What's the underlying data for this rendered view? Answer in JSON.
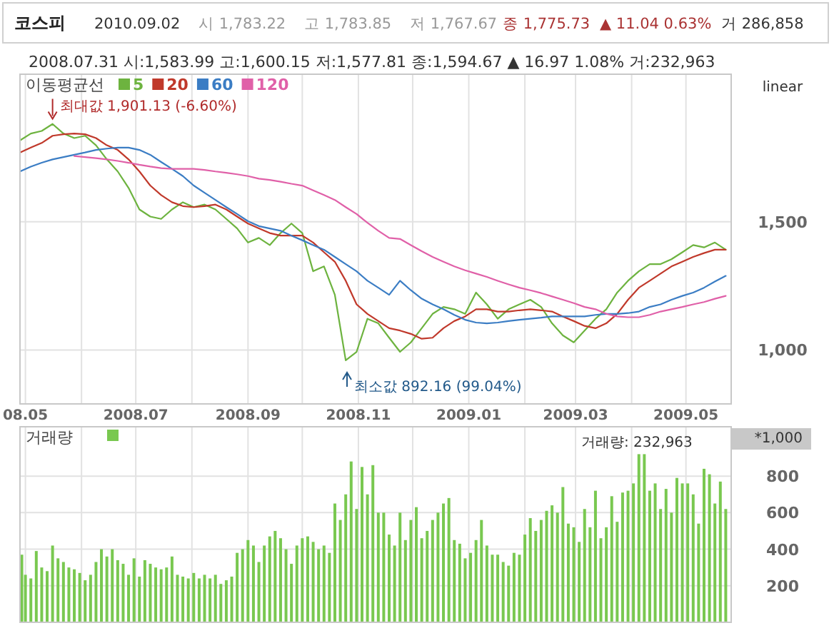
{
  "chart_data": [
    {
      "type": "line",
      "title": "코스피",
      "subtitle": "2008.07.31 시:1,583.99 고:1,600.15 저:1,577.81 종:1,594.67 ▲ 16.97 1.08% 거:232,963",
      "legend_title": "이동평균선",
      "legend": "top left",
      "grid": true,
      "annotations": [
        "2010.09.02",
        "시 1,783.22",
        "고 1,783.85",
        "저 1,767.67",
        "종 1,775.73",
        "▲ 11.04 0.63%",
        "거 286,858",
        "linear",
        {
          "text": "최대값 1,901.13 (-6.60%)",
          "x": "2008-05-16",
          "y": 1901.13
        },
        "최소값 892.16 (99.04%)"
      ],
      "x": [
        "2008-04-28",
        "2008-05-04",
        "2008-05-10",
        "2008-05-16",
        "2008-05-22",
        "2008-05-28",
        "2008-06-03",
        "2008-06-09",
        "2008-06-15",
        "2008-06-21",
        "2008-06-27",
        "2008-07-03",
        "2008-07-09",
        "2008-07-15",
        "2008-07-21",
        "2008-07-27",
        "2008-08-02",
        "2008-08-08",
        "2008-08-14",
        "2008-08-20",
        "2008-08-26",
        "2008-09-01",
        "2008-09-07",
        "2008-09-13",
        "2008-09-19",
        "2008-09-25",
        "2008-10-01",
        "2008-10-07",
        "2008-10-13",
        "2008-10-19",
        "2008-10-25",
        "2008-10-31",
        "2008-11-06",
        "2008-11-12",
        "2008-11-18",
        "2008-11-24",
        "2008-11-30",
        "2008-12-06",
        "2008-12-12",
        "2008-12-18",
        "2008-12-24",
        "2008-12-30",
        "2009-01-05",
        "2009-01-11",
        "2009-01-17",
        "2009-01-23",
        "2009-01-29",
        "2009-02-04",
        "2009-02-10",
        "2009-02-16",
        "2009-02-22",
        "2009-02-28",
        "2009-03-06",
        "2009-03-12",
        "2009-03-18",
        "2009-03-24",
        "2009-03-30",
        "2009-04-05",
        "2009-04-11",
        "2009-04-17",
        "2009-04-23",
        "2009-04-29",
        "2009-05-05",
        "2009-05-11",
        "2009-05-17",
        "2009-05-23"
      ],
      "xlim": [
        "2008-04-28",
        "2009-05-26"
      ],
      "xticks": [
        {
          "value": "2008-05-01",
          "label": "08.05"
        },
        {
          "value": "2008-06-01",
          "label": null
        },
        {
          "value": "2008-07-01",
          "label": "2008.07"
        },
        {
          "value": "2008-08-01",
          "label": null
        },
        {
          "value": "2008-09-01",
          "label": "2008.09"
        },
        {
          "value": "2008-10-01",
          "label": null
        },
        {
          "value": "2008-11-01",
          "label": "2008.11"
        },
        {
          "value": "2008-12-01",
          "label": null
        },
        {
          "value": "2009-01-01",
          "label": "2009.01"
        },
        {
          "value": "2009-02-01",
          "label": null
        },
        {
          "value": "2009-03-01",
          "label": "2009.03"
        },
        {
          "value": "2009-04-01",
          "label": null
        },
        {
          "value": "2009-05-01",
          "label": "2009.05"
        }
      ],
      "ylim": [
        790,
        2075
      ],
      "yticks": [
        {
          "value": 1000,
          "label": "1,000"
        },
        {
          "value": 1500,
          "label": "1,500"
        }
      ],
      "series": [
        {
          "name": "5",
          "color": "#6db33f",
          "values": [
            1817,
            1844,
            1854,
            1881,
            1844,
            1826,
            1835,
            1798,
            1743,
            1696,
            1632,
            1548,
            1520,
            1511,
            1548,
            1576,
            1557,
            1567,
            1548,
            1511,
            1474,
            1419,
            1437,
            1409,
            1456,
            1493,
            1456,
            1307,
            1326,
            1215,
            960,
            993,
            1122,
            1104,
            1048,
            993,
            1030,
            1085,
            1141,
            1168,
            1159,
            1141,
            1224,
            1178,
            1122,
            1159,
            1178,
            1196,
            1168,
            1104,
            1057,
            1030,
            1076,
            1122,
            1159,
            1224,
            1270,
            1307,
            1335,
            1335,
            1354,
            1381,
            1409,
            1400,
            1419,
            1391
          ]
        },
        {
          "name": "20",
          "color": "#c0392b",
          "values": [
            1770,
            1789,
            1807,
            1835,
            1841,
            1844,
            1841,
            1826,
            1798,
            1780,
            1743,
            1696,
            1641,
            1604,
            1576,
            1561,
            1557,
            1561,
            1567,
            1548,
            1520,
            1493,
            1474,
            1456,
            1446,
            1446,
            1446,
            1419,
            1381,
            1344,
            1270,
            1178,
            1141,
            1113,
            1085,
            1076,
            1063,
            1044,
            1048,
            1085,
            1113,
            1131,
            1159,
            1159,
            1150,
            1150,
            1155,
            1159,
            1155,
            1150,
            1131,
            1113,
            1094,
            1085,
            1104,
            1141,
            1196,
            1243,
            1270,
            1298,
            1326,
            1344,
            1363,
            1378,
            1391,
            1391
          ]
        },
        {
          "name": "60",
          "color": "#3b7dc4",
          "values": [
            1696,
            1715,
            1730,
            1743,
            1752,
            1761,
            1770,
            1780,
            1785,
            1789,
            1789,
            1780,
            1761,
            1733,
            1706,
            1678,
            1641,
            1613,
            1585,
            1557,
            1530,
            1502,
            1483,
            1474,
            1465,
            1446,
            1428,
            1409,
            1391,
            1363,
            1335,
            1307,
            1270,
            1243,
            1215,
            1270,
            1233,
            1200,
            1178,
            1159,
            1137,
            1118,
            1107,
            1104,
            1107,
            1113,
            1118,
            1122,
            1126,
            1131,
            1131,
            1131,
            1131,
            1137,
            1141,
            1141,
            1144,
            1150,
            1168,
            1178,
            1196,
            1211,
            1224,
            1243,
            1267,
            1289
          ]
        },
        {
          "name": "120",
          "color": "#e060a8",
          "values": [
            null,
            null,
            null,
            null,
            null,
            1756,
            1752,
            1748,
            1743,
            1737,
            1730,
            1722,
            1715,
            1709,
            1706,
            1706,
            1706,
            1702,
            1696,
            1691,
            1685,
            1678,
            1668,
            1663,
            1656,
            1648,
            1641,
            1622,
            1604,
            1585,
            1557,
            1530,
            1496,
            1465,
            1437,
            1433,
            1409,
            1385,
            1363,
            1344,
            1326,
            1311,
            1298,
            1285,
            1270,
            1256,
            1243,
            1233,
            1222,
            1209,
            1196,
            1183,
            1168,
            1159,
            1141,
            1131,
            1128,
            1128,
            1137,
            1150,
            1159,
            1168,
            1178,
            1187,
            1200,
            1211
          ]
        }
      ]
    },
    {
      "type": "bar",
      "legend": "top left",
      "grid": true,
      "tick_labels": "y",
      "annotations": [
        "거래량: 232,963",
        "*1,000"
      ],
      "x": [
        "2008-04-29",
        "2008-05-01",
        "2008-05-04",
        "2008-05-07",
        "2008-05-10",
        "2008-05-13",
        "2008-05-16",
        "2008-05-19",
        "2008-05-22",
        "2008-05-25",
        "2008-05-28",
        "2008-05-31",
        "2008-06-03",
        "2008-06-06",
        "2008-06-09",
        "2008-06-12",
        "2008-06-15",
        "2008-06-18",
        "2008-06-21",
        "2008-06-24",
        "2008-06-27",
        "2008-06-30",
        "2008-07-03",
        "2008-07-06",
        "2008-07-09",
        "2008-07-12",
        "2008-07-15",
        "2008-07-18",
        "2008-07-21",
        "2008-07-24",
        "2008-07-27",
        "2008-07-30",
        "2008-08-02",
        "2008-08-05",
        "2008-08-08",
        "2008-08-11",
        "2008-08-14",
        "2008-08-17",
        "2008-08-20",
        "2008-08-23",
        "2008-08-26",
        "2008-08-29",
        "2008-09-01",
        "2008-09-04",
        "2008-09-07",
        "2008-09-10",
        "2008-09-13",
        "2008-09-16",
        "2008-09-19",
        "2008-09-22",
        "2008-09-25",
        "2008-09-28",
        "2008-10-01",
        "2008-10-04",
        "2008-10-07",
        "2008-10-10",
        "2008-10-13",
        "2008-10-16",
        "2008-10-19",
        "2008-10-22",
        "2008-10-25",
        "2008-10-28",
        "2008-10-31",
        "2008-11-03",
        "2008-11-06",
        "2008-11-09",
        "2008-11-12",
        "2008-11-15",
        "2008-11-18",
        "2008-11-21",
        "2008-11-24",
        "2008-11-27",
        "2008-11-30",
        "2008-12-03",
        "2008-12-06",
        "2008-12-09",
        "2008-12-12",
        "2008-12-15",
        "2008-12-18",
        "2008-12-21",
        "2008-12-24",
        "2008-12-27",
        "2008-12-30",
        "2009-01-02",
        "2009-01-05",
        "2009-01-08",
        "2009-01-11",
        "2009-01-14",
        "2009-01-17",
        "2009-01-20",
        "2009-01-23",
        "2009-01-26",
        "2009-01-29",
        "2009-02-01",
        "2009-02-04",
        "2009-02-07",
        "2009-02-10",
        "2009-02-13",
        "2009-02-16",
        "2009-02-19",
        "2009-02-22",
        "2009-02-25",
        "2009-02-28",
        "2009-03-03",
        "2009-03-06",
        "2009-03-09",
        "2009-03-12",
        "2009-03-15",
        "2009-03-18",
        "2009-03-21",
        "2009-03-24",
        "2009-03-27",
        "2009-03-30",
        "2009-04-02",
        "2009-04-05",
        "2009-04-08",
        "2009-04-11",
        "2009-04-14",
        "2009-04-17",
        "2009-04-20",
        "2009-04-23",
        "2009-04-26",
        "2009-04-29",
        "2009-05-02",
        "2009-05-05",
        "2009-05-08",
        "2009-05-11",
        "2009-05-14",
        "2009-05-17",
        "2009-05-20",
        "2009-05-23"
      ],
      "xlim": [
        "2008-04-28",
        "2009-05-26"
      ],
      "xticks": [
        {
          "value": "2008-05-01",
          "label": null
        },
        {
          "value": "2008-06-01",
          "label": null
        },
        {
          "value": "2008-07-01",
          "label": null
        },
        {
          "value": "2008-08-01",
          "label": null
        },
        {
          "value": "2008-09-01",
          "label": null
        },
        {
          "value": "2008-10-01",
          "label": null
        },
        {
          "value": "2008-11-01",
          "label": null
        },
        {
          "value": "2008-12-01",
          "label": null
        },
        {
          "value": "2009-01-01",
          "label": null
        },
        {
          "value": "2009-02-01",
          "label": null
        },
        {
          "value": "2009-03-01",
          "label": null
        },
        {
          "value": "2009-04-01",
          "label": null
        },
        {
          "value": "2009-05-01",
          "label": null
        }
      ],
      "ylim": [
        0,
        1070
      ],
      "yticks": [
        200,
        400,
        600,
        800
      ],
      "series": [
        {
          "name": "거래량",
          "color": "#79c850",
          "values": [
            370,
            260,
            240,
            390,
            300,
            280,
            420,
            350,
            330,
            300,
            290,
            270,
            230,
            260,
            330,
            400,
            360,
            400,
            340,
            320,
            260,
            350,
            250,
            340,
            320,
            300,
            290,
            300,
            360,
            260,
            250,
            240,
            270,
            240,
            260,
            240,
            260,
            210,
            230,
            250,
            380,
            400,
            450,
            420,
            330,
            420,
            470,
            500,
            460,
            400,
            320,
            420,
            460,
            470,
            440,
            400,
            420,
            380,
            650,
            560,
            700,
            880,
            620,
            850,
            700,
            860,
            600,
            600,
            480,
            420,
            600,
            450,
            560,
            630,
            460,
            500,
            560,
            600,
            650,
            680,
            450,
            430,
            350,
            380,
            450,
            560,
            420,
            370,
            370,
            330,
            310,
            380,
            370,
            480,
            570,
            500,
            560,
            610,
            640,
            600,
            740,
            540,
            520,
            440,
            620,
            520,
            720,
            460,
            520,
            690,
            550,
            710,
            720,
            760,
            920,
            920,
            720,
            760,
            620,
            730,
            600,
            790,
            760,
            760,
            700,
            540,
            840,
            810,
            650,
            770,
            620
          ]
        }
      ]
    }
  ]
}
